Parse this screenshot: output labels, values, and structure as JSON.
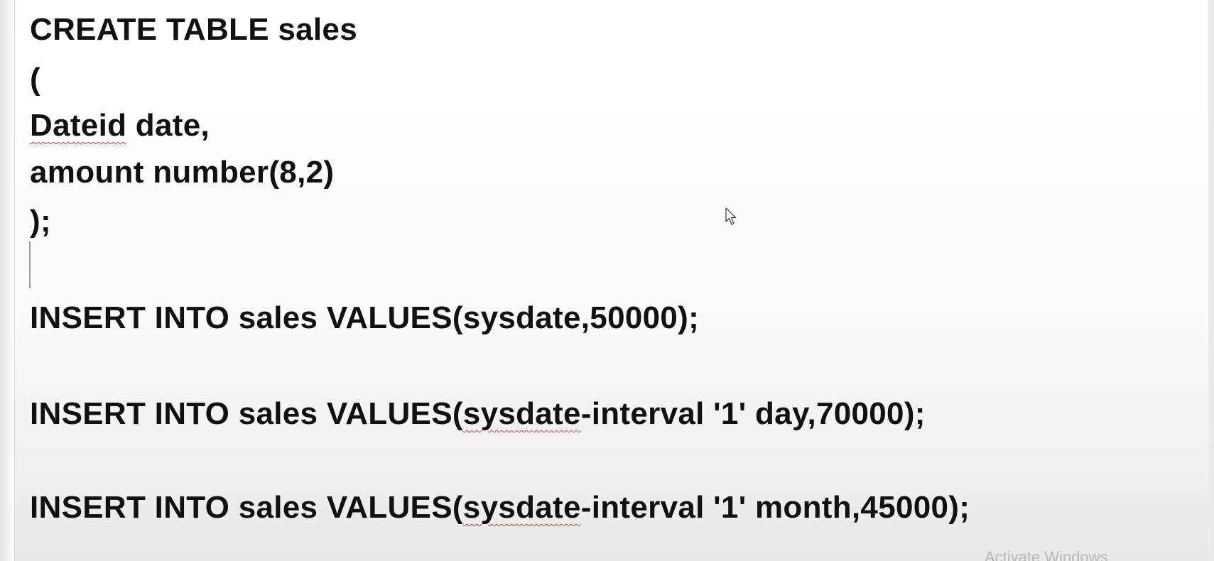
{
  "editor": {
    "lines": [
      "CREATE TABLE sales",
      "(",
      "Dateid date,",
      "amount number(8,2)",
      ");",
      "INSERT INTO sales VALUES(sysdate,50000);",
      "INSERT INTO sales VALUES(sysdate-interval '1' day,70000);",
      "INSERT INTO sales VALUES(sysdate-interval '1' month,45000);"
    ],
    "line3": {
      "word_flagged": "Dateid",
      "rest": " date,"
    },
    "line7": {
      "prefix": "INSERT INTO sales VALUES(",
      "word_flagged": "sysdate",
      "rest": "-interval '1' day,70000);"
    },
    "line8": {
      "prefix": "INSERT INTO sales VALUES(",
      "word_flagged": "sysdate",
      "rest": "-interval '1' month,45000);"
    }
  },
  "watermark": "Activate Windows",
  "cursor_icon": "mouse-pointer-icon",
  "colors": {
    "text": "#111111",
    "spellcheck_underline": "#d04040",
    "watermark": "#b8b8b8"
  }
}
